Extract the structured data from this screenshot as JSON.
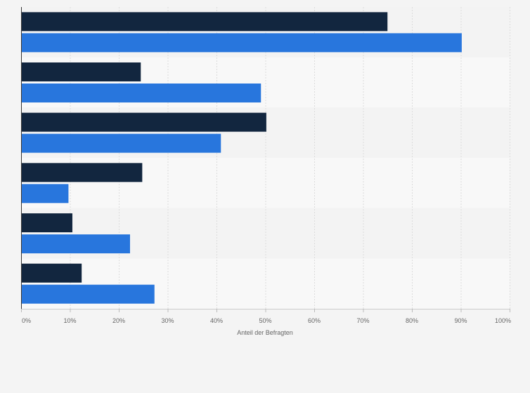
{
  "chart_data": {
    "type": "bar",
    "orientation": "horizontal",
    "categories": [
      "",
      "",
      "",
      "",
      "",
      ""
    ],
    "series": [
      {
        "values": [
          75,
          24.5,
          50.2,
          24.8,
          10.5,
          12.4
        ]
      },
      {
        "values": [
          90.2,
          49.1,
          40.9,
          9.7,
          22.3,
          27.3
        ]
      }
    ],
    "xlabel": "Anteil der Befragten",
    "ylabel": "",
    "xlim": [
      0,
      100
    ],
    "ticks": [
      "0%",
      "10%",
      "20%",
      "30%",
      "40%",
      "50%",
      "60%",
      "70%",
      "80%",
      "90%",
      "100%"
    ],
    "grid": true,
    "colors": {
      "series_1": "#12263f",
      "series_2": "#2876dd",
      "band_a": "#f3f3f3",
      "band_b": "#f8f8f8",
      "grid": "#dcdcdc",
      "axis": "#333333",
      "text": "#666666"
    }
  }
}
